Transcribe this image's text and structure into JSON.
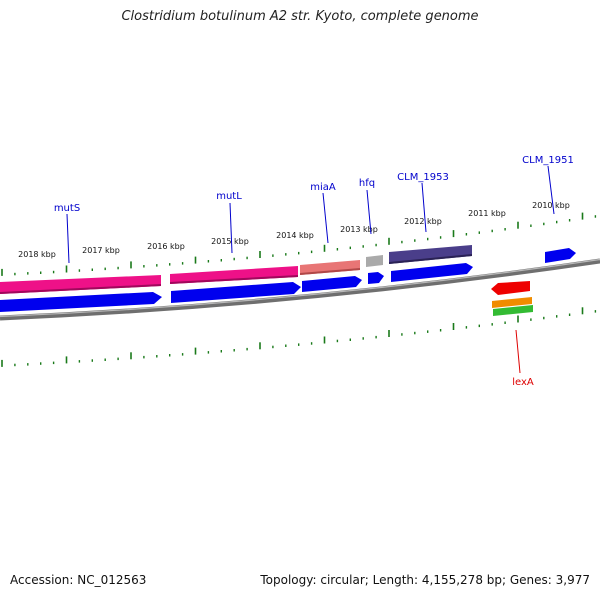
{
  "title": "Clostridium botulinum A2 str. Kyoto, complete genome",
  "footer": {
    "accession": "Accession: NC_012563",
    "summary": "Topology: circular; Length: 4,155,278 bp; Genes: 3,977"
  },
  "scale_labels": [
    "2018 kbp",
    "2017 kbp",
    "2016 kbp",
    "2015 kbp",
    "2014 kbp",
    "2013 kbp",
    "2012 kbp",
    "2011 kbp",
    "2010 kbp"
  ],
  "gene_labels": [
    {
      "name": "mutS",
      "color": "#0000cc"
    },
    {
      "name": "mutL",
      "color": "#0000cc"
    },
    {
      "name": "miaA",
      "color": "#0000cc"
    },
    {
      "name": "hfq",
      "color": "#0000cc"
    },
    {
      "name": "CLM_1953",
      "color": "#0000cc"
    },
    {
      "name": "CLM_1951",
      "color": "#0000cc"
    },
    {
      "name": "lexA",
      "color": "#dd0000"
    }
  ],
  "colors": {
    "tick": "#1a7a1a",
    "backbone": "#7f7f7f",
    "cds_blue": "#0000ee",
    "mutS_pink": "#ee1188",
    "miaA_salmon": "#e87575",
    "hfq_gray": "#aaaaaa",
    "clm1953_purple": "#4a3e8a",
    "lexA_red": "#ee0000",
    "lexA_orange": "#f08c00",
    "lexA_green": "#33bb33"
  }
}
